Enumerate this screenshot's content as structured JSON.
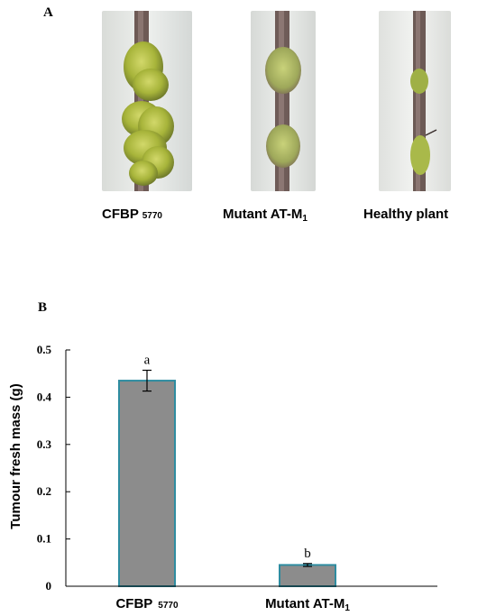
{
  "panel_a": {
    "letter": "A",
    "captions": [
      {
        "main": "CFBP",
        "sub": "5770"
      },
      {
        "main": "Mutant AT-M",
        "sub": "1"
      },
      {
        "main": "Healthy plant",
        "sub": ""
      }
    ]
  },
  "panel_b": {
    "letter": "B"
  },
  "chart_data": {
    "type": "bar",
    "categories": [
      {
        "main": "CFBP",
        "sub": "5770"
      },
      {
        "main": "Mutant AT-M",
        "sub": "1"
      }
    ],
    "values": [
      0.435,
      0.045
    ],
    "error": [
      0.022,
      0.003
    ],
    "significance": [
      "a",
      "b"
    ],
    "title": "",
    "xlabel": "",
    "ylabel": "Tumour fresh mass (g)",
    "ylim": [
      0,
      0.5
    ],
    "yticks": [
      "0",
      "0.1",
      "0.2",
      "0.3",
      "0.4",
      "0.5"
    ],
    "grid": false,
    "bar_fill": "#8c8c8c",
    "bar_edge": "#2e8ca0"
  }
}
